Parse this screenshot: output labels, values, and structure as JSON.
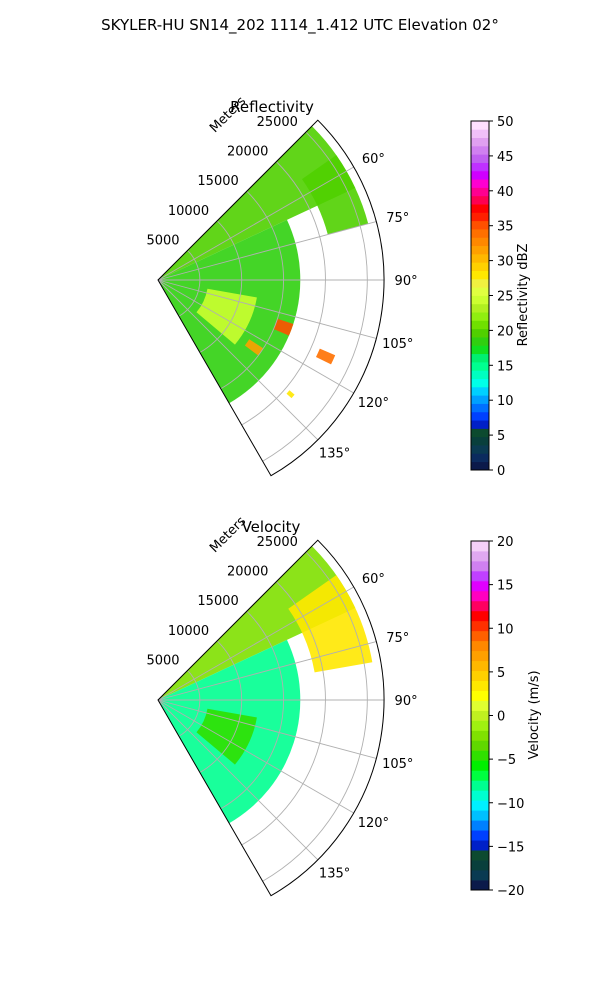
{
  "figure": {
    "suptitle": "SKYLER-HU  SN14_202  1114_1.412 UTC Elevation 02°"
  },
  "chart_data": [
    {
      "type": "polar-ppi",
      "title": "Reflectivity",
      "range_label": "Meters",
      "range_ticks": [
        5000,
        10000,
        15000,
        20000,
        25000
      ],
      "range_tick_labels": [
        "5000",
        "10000",
        "15000",
        "20000",
        "25000"
      ],
      "range_max": 27000,
      "azimuth_range_deg": [
        45,
        150
      ],
      "azimuth_tick_labels": [
        "60°",
        "75°",
        "90°",
        "105°",
        "120°",
        "135°"
      ],
      "azimuth_ticks_deg": [
        60,
        75,
        90,
        105,
        120,
        135
      ],
      "grid": true,
      "colorbar": {
        "label": "Reflectivity dBZ",
        "min": 0,
        "max": 50,
        "ticks": [
          0,
          5,
          10,
          15,
          20,
          25,
          30,
          35,
          40,
          45,
          50
        ],
        "tick_labels": [
          "0",
          "5",
          "10",
          "15",
          "20",
          "25",
          "30",
          "35",
          "40",
          "45",
          "50"
        ],
        "colors": [
          "#0b1a4a",
          "#0b2b5e",
          "#0a3a52",
          "#083f3c",
          "#0c4a2f",
          "#0020c8",
          "#0040ff",
          "#0070ff",
          "#00a0ff",
          "#00d0ff",
          "#00ffe8",
          "#00ffc0",
          "#00ff90",
          "#00f070",
          "#10e020",
          "#30d010",
          "#50d000",
          "#70e000",
          "#90ee10",
          "#b0f020",
          "#ccff30",
          "#e0ff40",
          "#f0f040",
          "#ffe800",
          "#ffd000",
          "#ffb800",
          "#ffa000",
          "#ff8800",
          "#ff7000",
          "#ff5000",
          "#ff2000",
          "#ff0000",
          "#ff0050",
          "#ff0090",
          "#ff00d0",
          "#d000ff",
          "#c030ff",
          "#c060f0",
          "#d080f0",
          "#e0a0f0",
          "#f0c0f8",
          "#ffe0ff"
        ]
      },
      "cells": [
        {
          "az": 40,
          "az2": 65,
          "r1": 0,
          "r2": 26000,
          "level": 20
        },
        {
          "az": 65,
          "az2": 150,
          "r1": 0,
          "r2": 17000,
          "level": 18
        },
        {
          "az": 55,
          "az2": 75,
          "r1": 21000,
          "r2": 26000,
          "level": 20
        },
        {
          "az": 100,
          "az2": 130,
          "r1": 6000,
          "r2": 12000,
          "level": 24
        },
        {
          "az": 108,
          "az2": 113,
          "r1": 15000,
          "r2": 17000,
          "level": 35
        },
        {
          "az": 113,
          "az2": 116,
          "r1": 21000,
          "r2": 23000,
          "level": 34
        },
        {
          "az": 123,
          "az2": 127,
          "r1": 13000,
          "r2": 15000,
          "level": 32
        },
        {
          "az": 130,
          "az2": 131.5,
          "r1": 20500,
          "r2": 21300,
          "level": 28
        }
      ]
    },
    {
      "type": "polar-ppi",
      "title": "Velocity",
      "range_label": "Meters",
      "range_ticks": [
        5000,
        10000,
        15000,
        20000,
        25000
      ],
      "range_tick_labels": [
        "5000",
        "10000",
        "15000",
        "20000",
        "25000"
      ],
      "range_max": 27000,
      "azimuth_range_deg": [
        45,
        150
      ],
      "azimuth_tick_labels": [
        "60°",
        "75°",
        "90°",
        "105°",
        "120°",
        "135°"
      ],
      "azimuth_ticks_deg": [
        60,
        75,
        90,
        105,
        120,
        135
      ],
      "grid": true,
      "colorbar": {
        "label": "Velocity (m/s)",
        "min": -20,
        "max": 20,
        "ticks": [
          -20,
          -15,
          -10,
          -5,
          0,
          5,
          10,
          15,
          20
        ],
        "tick_labels": [
          "−20",
          "−15",
          "−10",
          "−5",
          "0",
          "5",
          "10",
          "15",
          "20"
        ],
        "colors": [
          "#0b1a4a",
          "#0a3a52",
          "#083f3c",
          "#0c4a2f",
          "#0020c8",
          "#0040ff",
          "#0080ff",
          "#00c0ff",
          "#00f0ff",
          "#00ffd0",
          "#00ff90",
          "#00ff40",
          "#00f000",
          "#30e000",
          "#60d800",
          "#80e000",
          "#a0f010",
          "#c0f020",
          "#e0ff30",
          "#ffff00",
          "#ffe800",
          "#ffd000",
          "#ffb800",
          "#ffa000",
          "#ff8800",
          "#ff6000",
          "#ff3000",
          "#ff0000",
          "#ff0060",
          "#ff00c0",
          "#e000ff",
          "#c040ff",
          "#d080f0",
          "#e0a8f0",
          "#f4d0f8"
        ]
      },
      "cells": [
        {
          "az": 40,
          "az2": 65,
          "r1": 0,
          "r2": 26000,
          "level": -2
        },
        {
          "az": 65,
          "az2": 150,
          "r1": 0,
          "r2": 17000,
          "level": -8
        },
        {
          "az": 55,
          "az2": 80,
          "r1": 19000,
          "r2": 26000,
          "level": 3
        },
        {
          "az": 100,
          "az2": 130,
          "r1": 6000,
          "r2": 12000,
          "level": -5
        }
      ]
    }
  ]
}
